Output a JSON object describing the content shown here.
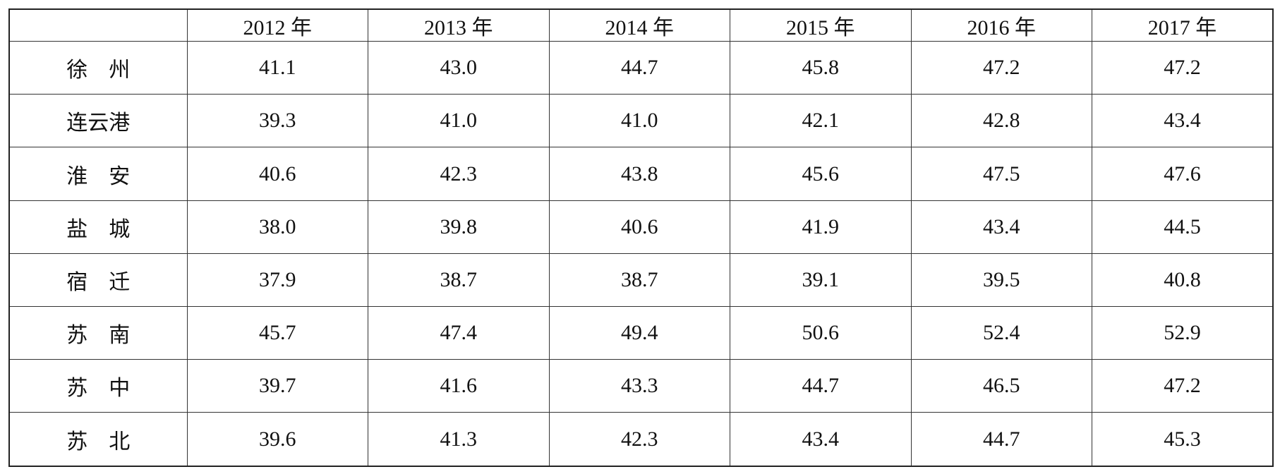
{
  "table": {
    "columns": [
      "2012 年",
      "2013 年",
      "2014 年",
      "2015 年",
      "2016 年",
      "2017 年"
    ],
    "rows": [
      {
        "label": "徐　州",
        "values": [
          "41.1",
          "43.0",
          "44.7",
          "45.8",
          "47.2",
          "47.2"
        ]
      },
      {
        "label": "连云港",
        "values": [
          "39.3",
          "41.0",
          "41.0",
          "42.1",
          "42.8",
          "43.4"
        ]
      },
      {
        "label": "淮　安",
        "values": [
          "40.6",
          "42.3",
          "43.8",
          "45.6",
          "47.5",
          "47.6"
        ]
      },
      {
        "label": "盐　城",
        "values": [
          "38.0",
          "39.8",
          "40.6",
          "41.9",
          "43.4",
          "44.5"
        ]
      },
      {
        "label": "宿　迁",
        "values": [
          "37.9",
          "38.7",
          "38.7",
          "39.1",
          "39.5",
          "40.8"
        ]
      },
      {
        "label": "苏　南",
        "values": [
          "45.7",
          "47.4",
          "49.4",
          "50.6",
          "52.4",
          "52.9"
        ]
      },
      {
        "label": "苏　中",
        "values": [
          "39.7",
          "41.6",
          "43.3",
          "44.7",
          "46.5",
          "47.2"
        ]
      },
      {
        "label": "苏　北",
        "values": [
          "39.6",
          "41.3",
          "42.3",
          "43.4",
          "44.7",
          "45.3"
        ]
      }
    ]
  }
}
